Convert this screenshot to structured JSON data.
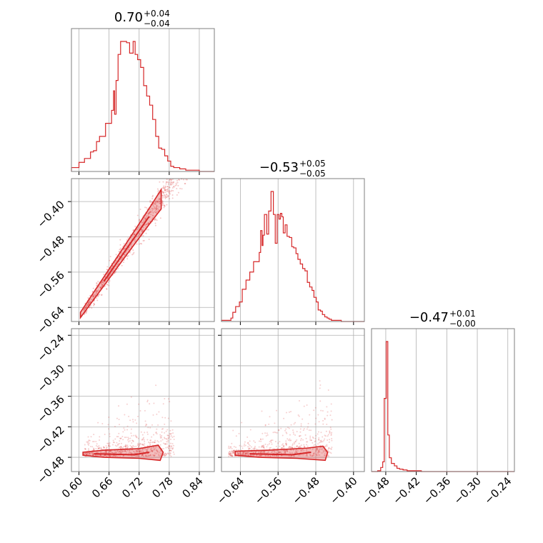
{
  "colors": {
    "series": "#d62728",
    "grid": "#b0b0b0",
    "frame": "#7f7f7f"
  },
  "chart_data": [
    {
      "type": "histogram",
      "panel": "1-1",
      "title_value": "0.70",
      "title_plus": "+0.04",
      "title_minus": "−0.04",
      "xlim": [
        0.585,
        0.87
      ],
      "xticks": [
        0.6,
        0.66,
        0.72,
        0.78,
        0.84
      ],
      "xtick_labels": [
        "0.60",
        "0.66",
        "0.72",
        "0.78",
        "0.84"
      ],
      "bin_edges": [
        0.585,
        0.6,
        0.611,
        0.617,
        0.623,
        0.629,
        0.635,
        0.641,
        0.647,
        0.653,
        0.659,
        0.665,
        0.669,
        0.671,
        0.674,
        0.678,
        0.683,
        0.689,
        0.695,
        0.701,
        0.708,
        0.712,
        0.717,
        0.723,
        0.729,
        0.735,
        0.741,
        0.747,
        0.753,
        0.759,
        0.765,
        0.771,
        0.777,
        0.783,
        0.789,
        0.795,
        0.801,
        0.807,
        0.813,
        0.819,
        0.825,
        0.84,
        0.87
      ],
      "counts": [
        3,
        7,
        10,
        10,
        15,
        16,
        23,
        27,
        27,
        37,
        37,
        47,
        62,
        44,
        70,
        90,
        100,
        100,
        99,
        91,
        100,
        90,
        86,
        80,
        66,
        58,
        51,
        40,
        27,
        18,
        17,
        12,
        8,
        4,
        3,
        3,
        2,
        2,
        1,
        1,
        1,
        0
      ]
    },
    {
      "type": "scatter",
      "panel": "2-1",
      "description_points": "correlated",
      "xlim": [
        0.585,
        0.87
      ],
      "ylim": [
        -0.672,
        -0.348
      ],
      "yticks": [
        -0.4,
        -0.48,
        -0.56,
        -0.64
      ],
      "ytick_labels": [
        "−0.40",
        "−0.48",
        "−0.56",
        "−0.64"
      ],
      "relation": {
        "slope": 1.63,
        "intercept": -1.64,
        "noise": 0.012,
        "n": 900
      }
    },
    {
      "type": "histogram",
      "panel": "2-2",
      "title_value": "−0.53",
      "title_plus": "+0.05",
      "title_minus": "−0.05",
      "xlim": [
        -0.68,
        -0.377
      ],
      "xticks": [
        -0.64,
        -0.56,
        -0.48,
        -0.4
      ],
      "xtick_labels": [
        "−0.64",
        "−0.56",
        "−0.48",
        "−0.40"
      ],
      "bin_edges": [
        -0.68,
        -0.66,
        -0.656,
        -0.65,
        -0.642,
        -0.636,
        -0.628,
        -0.62,
        -0.612,
        -0.604,
        -0.6,
        -0.597,
        -0.594,
        -0.592,
        -0.589,
        -0.584,
        -0.58,
        -0.575,
        -0.57,
        -0.566,
        -0.562,
        -0.558,
        -0.555,
        -0.552,
        -0.549,
        -0.545,
        -0.541,
        -0.536,
        -0.531,
        -0.527,
        -0.522,
        -0.518,
        -0.513,
        -0.508,
        -0.503,
        -0.498,
        -0.493,
        -0.488,
        -0.484,
        -0.479,
        -0.475,
        -0.47,
        -0.466,
        -0.461,
        -0.456,
        -0.452,
        -0.447,
        -0.443,
        -0.438,
        -0.433,
        -0.426,
        -0.418,
        -0.41,
        -0.4,
        -0.377
      ],
      "counts": [
        1,
        3,
        8,
        13,
        17,
        28,
        36,
        43,
        52,
        52,
        60,
        79,
        66,
        75,
        93,
        76,
        96,
        113,
        93,
        68,
        93,
        89,
        94,
        91,
        77,
        84,
        74,
        73,
        65,
        64,
        59,
        54,
        50,
        46,
        44,
        34,
        30,
        27,
        21,
        17,
        10,
        9,
        6,
        4,
        3,
        2,
        1,
        1,
        1,
        1,
        0,
        0,
        0,
        0
      ]
    },
    {
      "type": "scatter",
      "panel": "3-1",
      "xlim": [
        0.585,
        0.87
      ],
      "ylim": [
        -0.508,
        -0.227
      ],
      "yticks": [
        -0.24,
        -0.3,
        -0.36,
        -0.42,
        -0.48
      ],
      "ytick_labels": [
        "−0.24",
        "−0.30",
        "−0.36",
        "−0.42",
        "−0.48"
      ]
    },
    {
      "type": "scatter",
      "panel": "3-2",
      "xlim": [
        -0.68,
        -0.377
      ],
      "ylim": [
        -0.508,
        -0.227
      ]
    },
    {
      "type": "histogram",
      "panel": "3-3",
      "title_value": "−0.47",
      "title_plus": "+0.01",
      "title_minus": "−0.00",
      "xlim": [
        -0.508,
        -0.227
      ],
      "xticks": [
        -0.48,
        -0.42,
        -0.36,
        -0.3,
        -0.24
      ],
      "xtick_labels": [
        "−0.48",
        "−0.42",
        "−0.36",
        "−0.30",
        "−0.24"
      ],
      "bin_edges": [
        -0.508,
        -0.496,
        -0.49,
        -0.486,
        -0.483,
        -0.479,
        -0.476,
        -0.473,
        -0.469,
        -0.463,
        -0.458,
        -0.453,
        -0.446,
        -0.438,
        -0.43,
        -0.42,
        -0.41,
        -0.4,
        -0.39,
        -0.227
      ],
      "counts": [
        0,
        1,
        5,
        12,
        90,
        160,
        45,
        17,
        10,
        7,
        4,
        3,
        2,
        1,
        1,
        1,
        0,
        0,
        0
      ]
    }
  ]
}
